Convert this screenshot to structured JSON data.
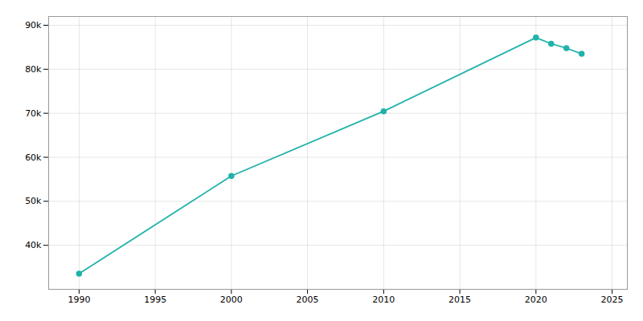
{
  "chart_data": {
    "type": "line",
    "x": [
      1990,
      2000,
      2010,
      2020,
      2021,
      2022,
      2023
    ],
    "values": [
      33556,
      55756,
      70451,
      87200,
      85800,
      84800,
      83500
    ],
    "color": "#20B2AA",
    "marker": "circle",
    "xlim": [
      1988,
      2026
    ],
    "xticks": [
      1990,
      1995,
      2000,
      2005,
      2010,
      2015,
      2020,
      2025
    ],
    "ylim": [
      30000,
      92000
    ],
    "yticks": [
      {
        "value": 40000,
        "label": "40k"
      },
      {
        "value": 50000,
        "label": "50k"
      },
      {
        "value": 60000,
        "label": "60k"
      },
      {
        "value": 70000,
        "label": "70k"
      },
      {
        "value": 80000,
        "label": "80k"
      },
      {
        "value": 90000,
        "label": "90k"
      }
    ],
    "grid": true
  }
}
